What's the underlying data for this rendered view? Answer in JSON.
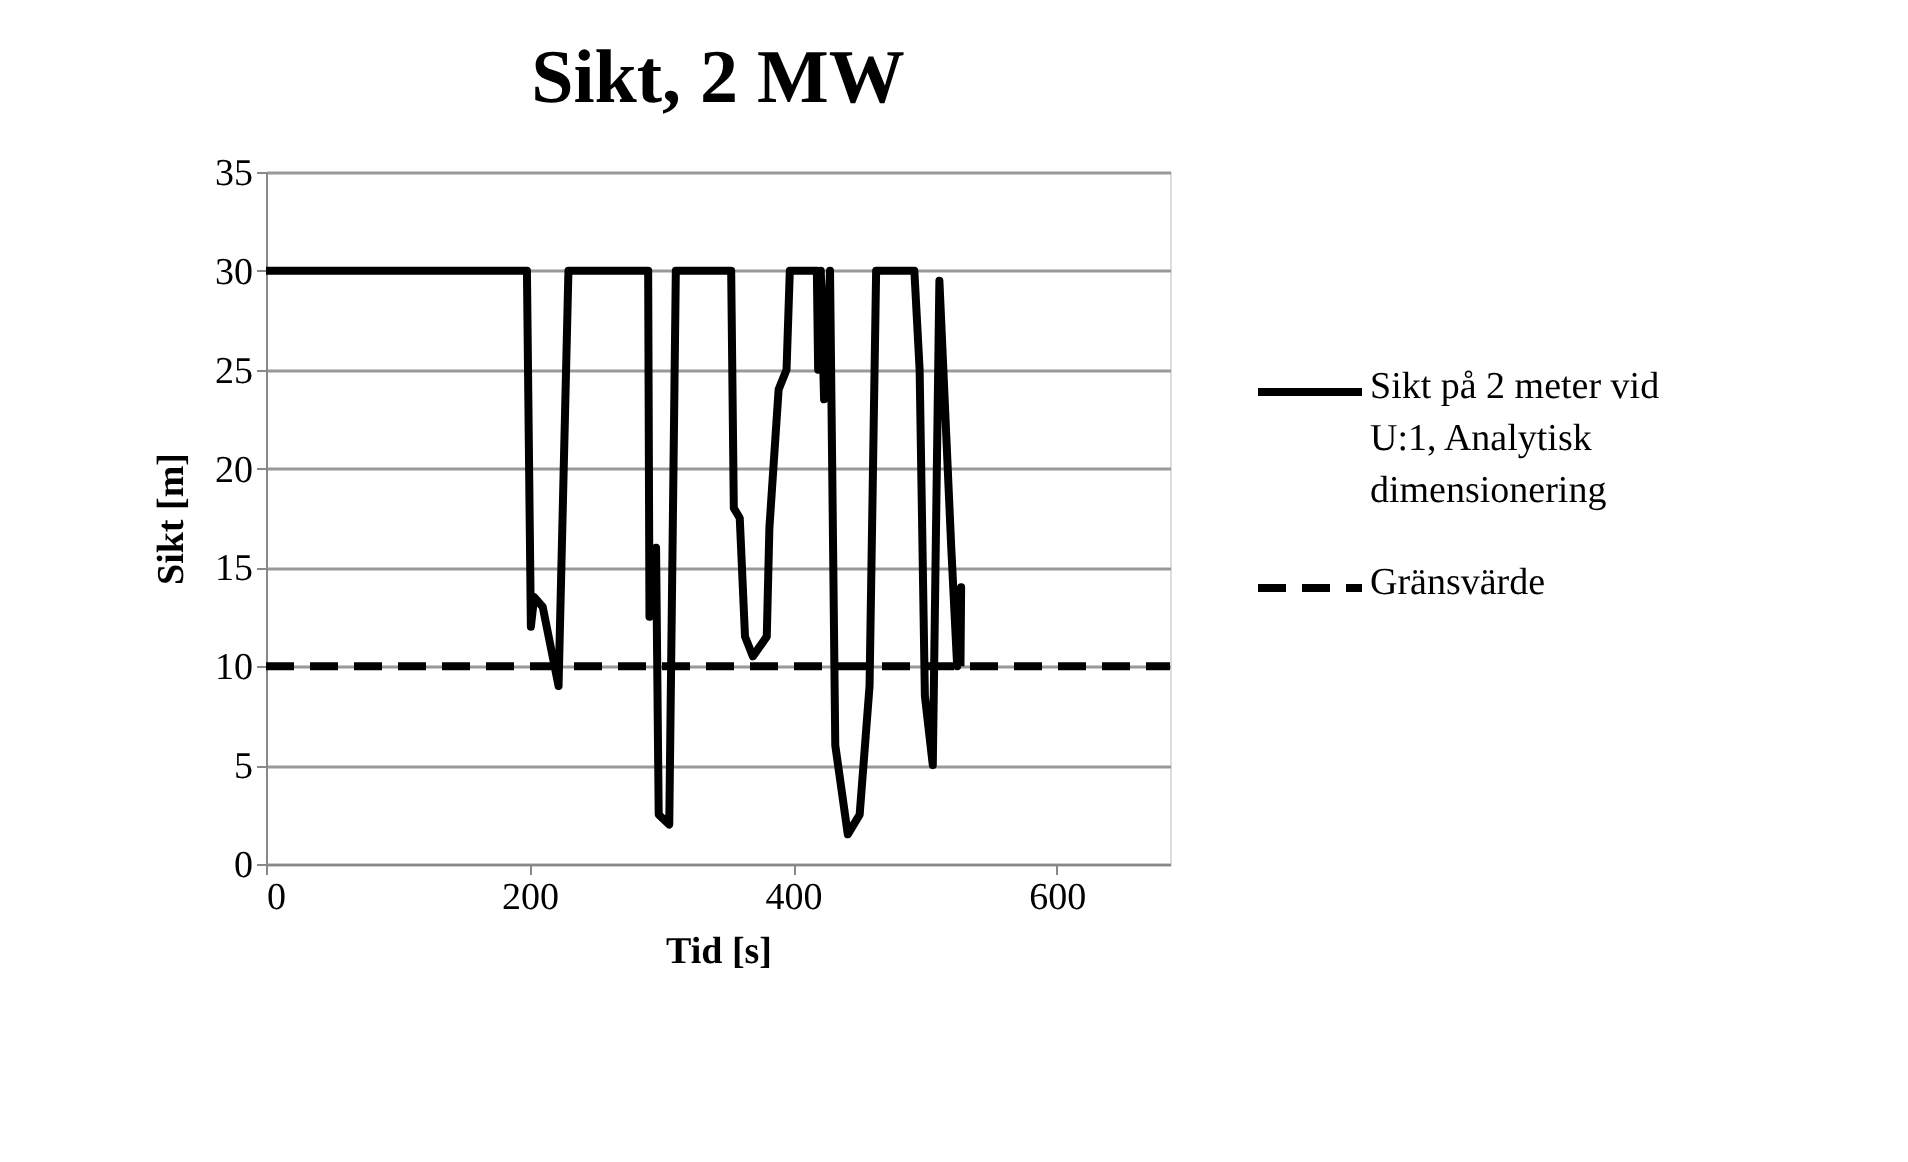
{
  "chart_data": {
    "type": "line",
    "title": "Sikt, 2 MW",
    "xlabel": "Tid [s]",
    "ylabel": "Sikt [m]",
    "xlim": [
      0,
      686
    ],
    "xticks": [
      0,
      200,
      400,
      600
    ],
    "ylim": [
      0,
      35
    ],
    "yticks": [
      0,
      5,
      10,
      15,
      20,
      25,
      30,
      35
    ],
    "grid": "y",
    "legend": "right",
    "marker": "none",
    "series": [
      {
        "name": "Sikt på 2 meter vid U:1, Analytisk dimensionering",
        "color": "#000000",
        "line_style": "solid",
        "x": [
          0,
          198,
          201,
          203.5,
          210,
          222,
          229.5,
          290,
          291,
          296,
          298,
          306,
          311,
          353,
          355,
          359.5,
          363.5,
          369.5,
          380,
          382,
          389,
          395,
          397.5,
          418,
          419,
          421,
          423.5,
          428,
          432,
          441.5,
          450.5,
          458,
          463,
          492,
          496,
          500,
          506,
          511,
          520,
          524.5,
          527.5,
          527
        ],
        "values": [
          30,
          30,
          12,
          13.5,
          13,
          9,
          30,
          30,
          12.5,
          16,
          2.5,
          2,
          30,
          30,
          18,
          17.5,
          11.5,
          10.5,
          11.5,
          17,
          24,
          25,
          30,
          30,
          25,
          30,
          23.5,
          30,
          6,
          1.5,
          2.5,
          9,
          30,
          30,
          25,
          8.5,
          5,
          29.5,
          16,
          10,
          14,
          10
        ]
      },
      {
        "name": "Gränsvärde",
        "color": "#000000",
        "line_style": "dashed",
        "x": [
          0,
          686
        ],
        "values": [
          10,
          10
        ]
      }
    ]
  }
}
